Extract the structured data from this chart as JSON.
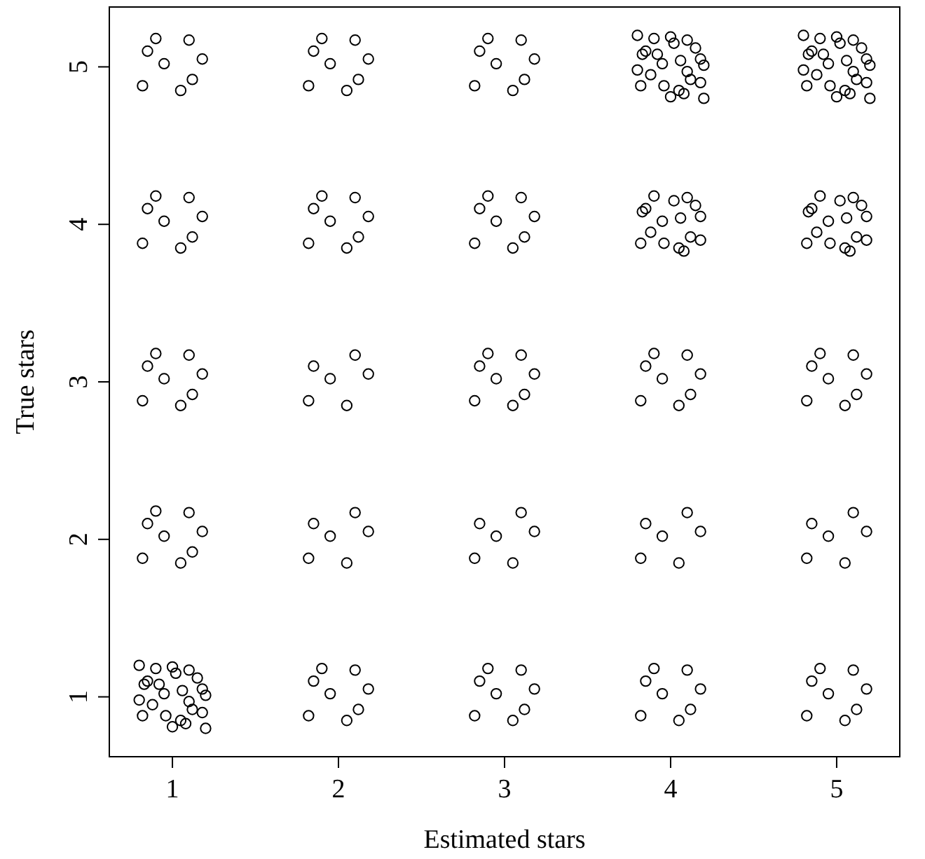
{
  "chart_data": {
    "type": "scatter",
    "xlabel": "Estimated stars",
    "ylabel": "True stars",
    "xlim": [
      0.62,
      5.38
    ],
    "ylim": [
      0.62,
      5.38
    ],
    "xticks": [
      1,
      2,
      3,
      4,
      5
    ],
    "yticks": [
      1,
      2,
      3,
      4,
      5
    ],
    "grid": false,
    "marker": "circle",
    "series": [
      {
        "color": "#000000",
        "x": [
          0.85,
          1.05,
          1.18,
          0.95,
          1.1,
          0.82,
          1.12,
          0.9,
          1.15,
          0.88,
          1.02,
          0.83,
          1.08,
          1.18,
          0.96,
          1.06,
          0.8,
          1.2,
          1,
          1,
          0.8,
          1.2,
          0.92,
          1.1
        ],
        "values": [
          1.1,
          0.85,
          1.05,
          1.02,
          1.17,
          0.88,
          0.92,
          1.18,
          1.12,
          0.95,
          1.15,
          1.08,
          0.83,
          0.9,
          0.88,
          1.04,
          1.2,
          0.8,
          1.19,
          0.81,
          0.98,
          1.01,
          1.08,
          0.97
        ]
      },
      {
        "color": "#000000",
        "x": [
          3.85,
          4.05,
          4.18,
          3.95,
          4.1,
          3.82,
          4.12,
          3.9,
          4.15,
          3.88,
          4.02,
          3.83,
          4.08,
          4.18,
          3.96,
          4.06,
          3.8,
          4.2,
          4,
          4,
          3.8,
          4.2,
          3.92,
          4.1
        ],
        "values": [
          5.1,
          4.85,
          5.05,
          5.02,
          5.17,
          4.88,
          4.92,
          5.18,
          5.12,
          4.95,
          5.15,
          5.08,
          4.83,
          4.9,
          4.88,
          5.04,
          5.2,
          4.8,
          5.19,
          4.81,
          4.98,
          5.01,
          5.08,
          4.97
        ]
      },
      {
        "color": "#000000",
        "x": [
          4.85,
          5.05,
          5.18,
          4.95,
          5.1,
          4.82,
          5.12,
          4.9,
          5.15,
          4.88,
          5.02,
          4.83,
          5.08,
          5.18,
          4.96,
          5.06,
          4.8,
          5.2,
          5,
          5,
          4.8,
          5.2,
          4.92,
          5.1
        ],
        "values": [
          5.1,
          4.85,
          5.05,
          5.02,
          5.17,
          4.88,
          4.92,
          5.18,
          5.12,
          4.95,
          5.15,
          5.08,
          4.83,
          4.9,
          4.88,
          5.04,
          5.2,
          4.8,
          5.19,
          4.81,
          4.98,
          5.01,
          5.08,
          4.97
        ]
      },
      {
        "color": "#000000",
        "x": [
          3.85,
          4.05,
          4.18,
          3.95,
          4.1,
          3.82,
          4.12,
          3.9,
          4.15,
          3.88,
          4.02,
          3.83,
          4.08,
          4.18,
          3.96,
          4.06
        ],
        "values": [
          4.1,
          3.85,
          4.05,
          4.02,
          4.17,
          3.88,
          3.92,
          4.18,
          4.12,
          3.95,
          4.15,
          4.08,
          3.83,
          3.9,
          3.88,
          4.04
        ]
      },
      {
        "color": "#000000",
        "x": [
          4.85,
          5.05,
          5.18,
          4.95,
          5.1,
          4.82,
          5.12,
          4.9,
          5.15,
          4.88,
          5.02,
          4.83,
          5.08,
          5.18,
          4.96,
          5.06
        ],
        "values": [
          4.1,
          3.85,
          4.05,
          4.02,
          4.17,
          3.88,
          3.92,
          4.18,
          4.12,
          3.95,
          4.15,
          4.08,
          3.83,
          3.9,
          3.88,
          4.04
        ]
      },
      {
        "color": "#000000",
        "x": [
          1.85,
          2.05,
          2.18,
          1.95,
          2.1,
          1.82
        ],
        "values": [
          3.1,
          2.85,
          3.05,
          3.02,
          3.17,
          2.88
        ]
      },
      {
        "color": "#000000",
        "x": [
          1.85,
          2.05,
          2.18,
          1.95,
          2.1,
          1.82
        ],
        "values": [
          2.1,
          1.85,
          2.05,
          2.02,
          2.17,
          1.88
        ]
      },
      {
        "color": "#000000",
        "x": [
          2.85,
          3.05,
          3.18,
          2.95,
          3.1,
          2.82
        ],
        "values": [
          2.1,
          1.85,
          2.05,
          2.02,
          2.17,
          1.88
        ]
      },
      {
        "color": "#000000",
        "x": [
          3.85,
          4.05,
          4.18,
          3.95,
          4.1,
          3.82
        ],
        "values": [
          2.1,
          1.85,
          2.05,
          2.02,
          2.17,
          1.88
        ]
      },
      {
        "color": "#000000",
        "x": [
          4.85,
          5.05,
          5.18,
          4.95,
          5.1,
          4.82
        ],
        "values": [
          2.1,
          1.85,
          2.05,
          2.02,
          2.17,
          1.88
        ]
      },
      {
        "color": "#000000",
        "x": [
          0.85,
          1.05,
          1.18,
          0.95,
          1.1,
          0.82,
          1.12,
          0.9
        ],
        "values": [
          5.1,
          4.85,
          5.05,
          5.02,
          5.17,
          4.88,
          4.92,
          5.18
        ]
      },
      {
        "color": "#000000",
        "x": [
          1.85,
          2.05,
          2.18,
          1.95,
          2.1,
          1.82,
          2.12,
          1.9
        ],
        "values": [
          5.1,
          4.85,
          5.05,
          5.02,
          5.17,
          4.88,
          4.92,
          5.18
        ]
      },
      {
        "color": "#000000",
        "x": [
          2.85,
          3.05,
          3.18,
          2.95,
          3.1,
          2.82,
          3.12,
          2.9
        ],
        "values": [
          5.1,
          4.85,
          5.05,
          5.02,
          5.17,
          4.88,
          4.92,
          5.18
        ]
      },
      {
        "color": "#000000",
        "x": [
          0.85,
          1.05,
          1.18,
          0.95,
          1.1,
          0.82,
          1.12,
          0.9
        ],
        "values": [
          4.1,
          3.85,
          4.05,
          4.02,
          4.17,
          3.88,
          3.92,
          4.18
        ]
      },
      {
        "color": "#000000",
        "x": [
          1.85,
          2.05,
          2.18,
          1.95,
          2.1,
          1.82,
          2.12,
          1.9
        ],
        "values": [
          4.1,
          3.85,
          4.05,
          4.02,
          4.17,
          3.88,
          3.92,
          4.18
        ]
      },
      {
        "color": "#000000",
        "x": [
          2.85,
          3.05,
          3.18,
          2.95,
          3.1,
          2.82,
          3.12,
          2.9
        ],
        "values": [
          4.1,
          3.85,
          4.05,
          4.02,
          4.17,
          3.88,
          3.92,
          4.18
        ]
      },
      {
        "color": "#000000",
        "x": [
          0.85,
          1.05,
          1.18,
          0.95,
          1.1,
          0.82,
          1.12,
          0.9
        ],
        "values": [
          3.1,
          2.85,
          3.05,
          3.02,
          3.17,
          2.88,
          2.92,
          3.18
        ]
      },
      {
        "color": "#000000",
        "x": [
          2.85,
          3.05,
          3.18,
          2.95,
          3.1,
          2.82,
          3.12,
          2.9
        ],
        "values": [
          3.1,
          2.85,
          3.05,
          3.02,
          3.17,
          2.88,
          2.92,
          3.18
        ]
      },
      {
        "color": "#000000",
        "x": [
          3.85,
          4.05,
          4.18,
          3.95,
          4.1,
          3.82,
          4.12,
          3.9
        ],
        "values": [
          3.1,
          2.85,
          3.05,
          3.02,
          3.17,
          2.88,
          2.92,
          3.18
        ]
      },
      {
        "color": "#000000",
        "x": [
          4.85,
          5.05,
          5.18,
          4.95,
          5.1,
          4.82,
          5.12,
          4.9
        ],
        "values": [
          3.1,
          2.85,
          3.05,
          3.02,
          3.17,
          2.88,
          2.92,
          3.18
        ]
      },
      {
        "color": "#000000",
        "x": [
          0.85,
          1.05,
          1.18,
          0.95,
          1.1,
          0.82,
          1.12,
          0.9
        ],
        "values": [
          2.1,
          1.85,
          2.05,
          2.02,
          2.17,
          1.88,
          1.92,
          2.18
        ]
      },
      {
        "color": "#000000",
        "x": [
          1.85,
          2.05,
          2.18,
          1.95,
          2.1,
          1.82,
          2.12,
          1.9
        ],
        "values": [
          1.1,
          0.85,
          1.05,
          1.02,
          1.17,
          0.88,
          0.92,
          1.18
        ]
      },
      {
        "color": "#000000",
        "x": [
          2.85,
          3.05,
          3.18,
          2.95,
          3.1,
          2.82,
          3.12,
          2.9
        ],
        "values": [
          1.1,
          0.85,
          1.05,
          1.02,
          1.17,
          0.88,
          0.92,
          1.18
        ]
      },
      {
        "color": "#000000",
        "x": [
          3.85,
          4.05,
          4.18,
          3.95,
          4.1,
          3.82,
          4.12,
          3.9
        ],
        "values": [
          1.1,
          0.85,
          1.05,
          1.02,
          1.17,
          0.88,
          0.92,
          1.18
        ]
      },
      {
        "color": "#000000",
        "x": [
          4.85,
          5.05,
          5.18,
          4.95,
          5.1,
          4.82,
          5.12,
          4.9
        ],
        "values": [
          1.1,
          0.85,
          1.05,
          1.02,
          1.17,
          0.88,
          0.92,
          1.18
        ]
      }
    ]
  }
}
